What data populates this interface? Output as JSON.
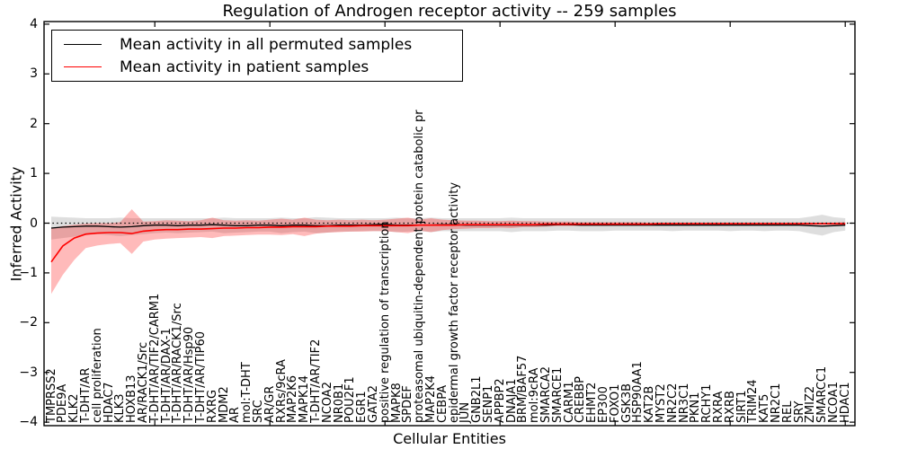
{
  "figure": {
    "title": "Regulation of Androgen receptor activity -- 259 samples",
    "xlabel": "Cellular Entities",
    "ylabel": "Inferred Activity"
  },
  "chart_data": {
    "type": "line",
    "title": "Regulation of Androgen receptor activity -- 259 samples",
    "xlabel": "Cellular Entities",
    "ylabel": "Inferred Activity",
    "ylim": [
      -4,
      4
    ],
    "ytick_values": [
      4,
      3,
      2,
      1,
      0,
      -1,
      -2,
      -3,
      -4
    ],
    "ytick_labels": [
      "4",
      "3",
      "2",
      "1",
      "0",
      "−1",
      "−2",
      "−3",
      "−4"
    ],
    "grid": false,
    "legend_position": "upper left",
    "zero_reference_line": {
      "y": 0,
      "style": "dotted",
      "color": "#000000"
    },
    "x_major_tick_indices": [
      9,
      19,
      29,
      39,
      49,
      59,
      69
    ],
    "categories": [
      "TMPRSS2",
      "PDE9A",
      "KLK2",
      "T-DHT/AR",
      "cell proliferation",
      "HDAC7",
      "KLK3",
      "HOXB13",
      "AR/RACK1/Src",
      "T-DHT/AR/TIF2/CARM1",
      "T-DHT/AR/DAX-1",
      "T-DHT/AR/RACK1/Src",
      "T-DHT/AR/Hsp90",
      "T-DHT/AR/TIP60",
      "RXRG",
      "MDM2",
      "AR",
      "mol:T-DHT",
      "SRC",
      "AR/GR",
      "RXRs/9cRA",
      "MAP2K6",
      "MAPK14",
      "T-DHT/AR/TIF2",
      "NCOA2",
      "NR0B1",
      "POU2F1",
      "EGR1",
      "GATA2",
      "positive regulation of transcription",
      "MAPK8",
      "SPDEF",
      "proteasomal ubiquitin-dependent protein catabolic pr",
      "MAP2K4",
      "CEBPA",
      "epidermal growth factor receptor activity",
      "JUN",
      "GNB2L1",
      "SENP1",
      "APPBP2",
      "DNAJA1",
      "BRM/BAF57",
      "mol:9cRA",
      "SMARCA2",
      "SMARCE1",
      "CARM1",
      "CREBBP",
      "EHMT2",
      "EP300",
      "FOXO1",
      "GSK3B",
      "HSP90AA1",
      "KAT2B",
      "MYST2",
      "NR2C2",
      "NR3C1",
      "PKN1",
      "RCHY1",
      "RXRA",
      "RXRB",
      "SIRT1",
      "TRIM24",
      "KAT5",
      "NR2C1",
      "REL",
      "SRY",
      "ZMIZ2",
      "SMARCC1",
      "NCOA1",
      "HDAC1"
    ],
    "series": [
      {
        "name": "Mean activity in all permuted samples",
        "color": "#000000",
        "values": [
          -0.1,
          -0.08,
          -0.07,
          -0.06,
          -0.06,
          -0.07,
          -0.08,
          -0.07,
          -0.05,
          -0.04,
          -0.04,
          -0.05,
          -0.04,
          -0.04,
          -0.03,
          -0.04,
          -0.05,
          -0.05,
          -0.04,
          -0.04,
          -0.05,
          -0.04,
          -0.04,
          -0.05,
          -0.05,
          -0.04,
          -0.04,
          -0.04,
          -0.03,
          -0.02,
          -0.04,
          -0.04,
          -0.04,
          -0.04,
          -0.03,
          -0.03,
          -0.04,
          -0.04,
          -0.04,
          -0.04,
          -0.04,
          -0.04,
          -0.04,
          -0.04,
          -0.03,
          -0.03,
          -0.04,
          -0.04,
          -0.04,
          -0.04,
          -0.04,
          -0.04,
          -0.04,
          -0.04,
          -0.04,
          -0.04,
          -0.04,
          -0.04,
          -0.04,
          -0.04,
          -0.04,
          -0.04,
          -0.04,
          -0.04,
          -0.04,
          -0.04,
          -0.05,
          -0.06,
          -0.05,
          -0.04
        ]
      },
      {
        "name": "Mean activity in patient samples",
        "color": "#ff0000",
        "values": [
          -0.78,
          -0.46,
          -0.3,
          -0.22,
          -0.2,
          -0.19,
          -0.19,
          -0.21,
          -0.16,
          -0.14,
          -0.13,
          -0.13,
          -0.12,
          -0.12,
          -0.11,
          -0.1,
          -0.1,
          -0.09,
          -0.09,
          -0.08,
          -0.08,
          -0.07,
          -0.07,
          -0.07,
          -0.06,
          -0.06,
          -0.06,
          -0.05,
          -0.05,
          -0.05,
          -0.05,
          -0.05,
          -0.04,
          -0.04,
          -0.04,
          -0.04,
          -0.03,
          -0.03,
          -0.03,
          -0.03,
          -0.03,
          -0.03,
          -0.03,
          -0.02,
          -0.02,
          -0.02,
          -0.02,
          -0.02,
          -0.02,
          -0.02,
          -0.02,
          -0.02,
          -0.02,
          -0.01,
          -0.01,
          -0.01,
          -0.01,
          -0.01,
          -0.01,
          -0.01,
          -0.01,
          -0.01,
          -0.01,
          -0.01,
          -0.01,
          -0.01,
          -0.01,
          -0.01,
          -0.01,
          -0.01
        ]
      }
    ],
    "bands": [
      {
        "name": "permuted samples range",
        "color": "#999999",
        "opacity": 0.32,
        "upper": [
          0.13,
          0.12,
          0.11,
          0.1,
          0.1,
          0.1,
          0.11,
          0.1,
          0.1,
          0.1,
          0.1,
          0.1,
          0.1,
          0.1,
          0.1,
          0.11,
          0.1,
          0.1,
          0.1,
          0.1,
          0.11,
          0.1,
          0.1,
          0.12,
          0.11,
          0.1,
          0.1,
          0.1,
          0.1,
          0.1,
          0.11,
          0.1,
          0.1,
          0.11,
          0.1,
          0.1,
          0.1,
          0.1,
          0.1,
          0.1,
          0.11,
          0.1,
          0.1,
          0.1,
          0.1,
          0.1,
          0.1,
          0.1,
          0.1,
          0.1,
          0.1,
          0.1,
          0.1,
          0.1,
          0.1,
          0.1,
          0.1,
          0.1,
          0.1,
          0.1,
          0.1,
          0.1,
          0.1,
          0.1,
          0.1,
          0.1,
          0.13,
          0.17,
          0.12,
          0.1
        ],
        "lower": [
          -0.33,
          -0.3,
          -0.27,
          -0.24,
          -0.22,
          -0.24,
          -0.26,
          -0.24,
          -0.22,
          -0.2,
          -0.19,
          -0.2,
          -0.19,
          -0.18,
          -0.17,
          -0.2,
          -0.19,
          -0.18,
          -0.17,
          -0.17,
          -0.2,
          -0.18,
          -0.17,
          -0.2,
          -0.19,
          -0.17,
          -0.17,
          -0.16,
          -0.16,
          -0.16,
          -0.18,
          -0.17,
          -0.16,
          -0.18,
          -0.16,
          -0.16,
          -0.16,
          -0.16,
          -0.16,
          -0.16,
          -0.18,
          -0.16,
          -0.16,
          -0.16,
          -0.15,
          -0.15,
          -0.16,
          -0.16,
          -0.16,
          -0.15,
          -0.15,
          -0.15,
          -0.15,
          -0.15,
          -0.16,
          -0.15,
          -0.15,
          -0.15,
          -0.15,
          -0.16,
          -0.15,
          -0.15,
          -0.16,
          -0.15,
          -0.15,
          -0.16,
          -0.21,
          -0.25,
          -0.18,
          -0.15
        ]
      },
      {
        "name": "patient samples range",
        "color": "#ff0000",
        "opacity": 0.27,
        "upper": [
          -0.1,
          -0.06,
          -0.03,
          -0.01,
          0.0,
          0.0,
          0.02,
          0.28,
          0.03,
          0.04,
          0.06,
          0.05,
          0.04,
          0.06,
          0.11,
          0.06,
          0.05,
          0.06,
          0.05,
          0.07,
          0.09,
          0.07,
          0.11,
          0.07,
          0.06,
          0.07,
          0.06,
          0.07,
          0.06,
          0.07,
          0.09,
          0.11,
          0.07,
          0.1,
          0.07,
          0.06,
          0.05,
          0.05,
          0.04,
          0.04,
          0.05,
          0.04,
          0.04,
          0.03,
          0.03,
          0.03,
          0.02,
          0.02,
          0.02,
          0.02,
          0.02,
          0.02,
          0.01,
          0.01,
          0.01,
          0.01,
          0.01,
          0.01,
          0.01,
          0.01,
          0.01,
          0.01,
          0.01,
          0.01,
          0.01,
          0.01,
          0.01,
          0.01,
          0.01,
          0.02
        ],
        "lower": [
          -1.42,
          -1.04,
          -0.74,
          -0.5,
          -0.45,
          -0.42,
          -0.4,
          -0.62,
          -0.37,
          -0.33,
          -0.31,
          -0.3,
          -0.29,
          -0.28,
          -0.3,
          -0.26,
          -0.25,
          -0.24,
          -0.23,
          -0.23,
          -0.24,
          -0.22,
          -0.26,
          -0.21,
          -0.19,
          -0.18,
          -0.17,
          -0.17,
          -0.16,
          -0.16,
          -0.18,
          -0.2,
          -0.15,
          -0.18,
          -0.14,
          -0.12,
          -0.11,
          -0.1,
          -0.1,
          -0.09,
          -0.1,
          -0.08,
          -0.08,
          -0.07,
          -0.06,
          -0.06,
          -0.05,
          -0.05,
          -0.05,
          -0.04,
          -0.04,
          -0.04,
          -0.03,
          -0.03,
          -0.03,
          -0.03,
          -0.03,
          -0.03,
          -0.03,
          -0.03,
          -0.03,
          -0.03,
          -0.03,
          -0.03,
          -0.03,
          -0.03,
          -0.03,
          -0.03,
          -0.03,
          -0.04
        ]
      }
    ]
  }
}
